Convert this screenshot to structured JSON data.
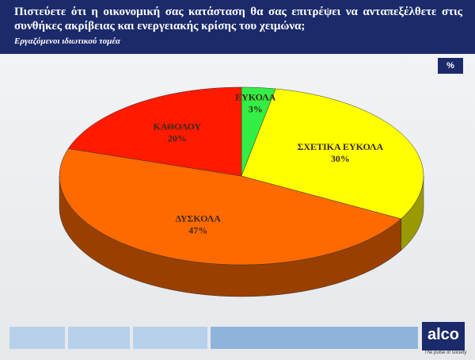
{
  "chart_data": {
    "type": "pie",
    "title": "Πιστεύετε ότι η οικονομική σας κατάσταση θα σας επιτρέψει να ανταπεξέλθετε στις συνθήκες ακρίβειας και ενεργειακής κρίσης του χειμώνα;",
    "subtitle": "Εργαζόμενοι ιδιωτικού τομέα",
    "unit_badge": "%",
    "categories": [
      "ΕΥΚΟΛΑ",
      "ΣΧΕΤΙΚΑ ΕΥΚΟΛΑ",
      "ΔΥΣΚΟΛΑ",
      "ΚΑΘΟΛΟΥ"
    ],
    "values": [
      3,
      30,
      47,
      20
    ],
    "value_labels": [
      "3%",
      "30%",
      "47%",
      "20%"
    ],
    "colors": [
      "#33ee44",
      "#ffff00",
      "#ff6a00",
      "#ff1a00"
    ]
  },
  "logo": {
    "text": "alco",
    "tagline": "The pulse of society"
  }
}
